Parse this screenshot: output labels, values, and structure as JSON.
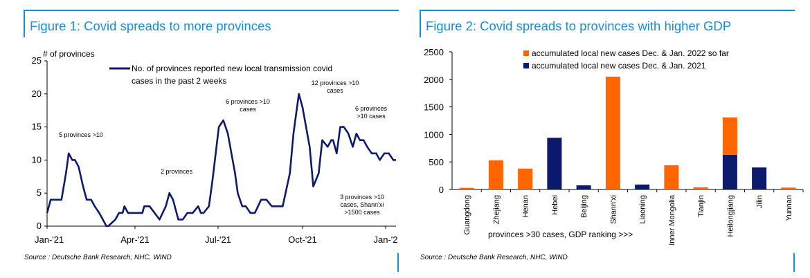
{
  "figure1": {
    "title": "Figure 1: Covid spreads to more provinces",
    "source": "Source : Deutsche Bank Research, NHC, WIND",
    "chart_data": {
      "type": "line",
      "ylabel": "# of provinces",
      "ylim": [
        0,
        25
      ],
      "yticks": [
        0,
        5,
        10,
        15,
        20,
        25
      ],
      "xticks": [
        "Jan-'21",
        "Apr-'21",
        "Jul-'21",
        "Oct-'21",
        "Jan-'2"
      ],
      "legend": "No. of provinces reported new local transmission covid cases in the past 2 weeks",
      "legend_lines": [
        "No. of provinces reported new local transmission covid",
        "cases in the past 2 weeks"
      ],
      "series_color": "#0c1a6e",
      "x_unit": "days since 1 Jan 2021",
      "x": [
        0,
        4,
        8,
        16,
        21,
        24,
        28,
        31,
        35,
        40,
        44,
        49,
        53,
        58,
        62,
        66,
        68,
        76,
        80,
        84,
        86,
        90,
        97,
        106,
        108,
        111,
        114,
        125,
        132,
        136,
        140,
        146,
        151,
        156,
        162,
        168,
        171,
        174,
        180,
        184,
        191,
        196,
        201,
        209,
        212,
        217,
        221,
        226,
        231,
        238,
        244,
        250,
        256,
        262,
        270,
        274,
        280,
        284,
        292,
        296,
        302,
        306,
        312,
        316,
        318,
        322,
        326,
        330,
        335,
        340,
        344,
        348,
        352,
        356,
        361,
        366,
        370,
        375,
        380,
        385,
        388
      ],
      "y": [
        2,
        4,
        4,
        4,
        8,
        11,
        10,
        10,
        9,
        6,
        4,
        4,
        3,
        2,
        1,
        0,
        0,
        1,
        2,
        2,
        3,
        2,
        2,
        2,
        3,
        3,
        3,
        1,
        3,
        5,
        4,
        1,
        1,
        2,
        2,
        3,
        2,
        2,
        3,
        7,
        15,
        16,
        14,
        8,
        5,
        3,
        3,
        2,
        2,
        4,
        4,
        3,
        3,
        3,
        8,
        14,
        20,
        18,
        12,
        6,
        8,
        13,
        12,
        13,
        13,
        11,
        15,
        15,
        14,
        12,
        14,
        13,
        13,
        12,
        11,
        11,
        10,
        11,
        11,
        10,
        10
      ]
    },
    "annotations": {
      "a1": "5 provinces >10",
      "a2": "2 provinces",
      "a3_l1": "6 provinces >10",
      "a3_l2": "cases",
      "a4_l1": "12 provinces >10",
      "a4_l2": "cases",
      "a5_l1": "6 provinces",
      "a5_l2": ">10 cases",
      "a6_l1": "3 provinces >10",
      "a6_l2": "cases, Shann'xi",
      "a6_l3": ">1500 cases"
    }
  },
  "figure2": {
    "title": "Figure 2: Covid spreads to provinces with higher GDP",
    "source": "Source : Deutsche Bank Research, NHC, WIND",
    "chart_data": {
      "type": "bar",
      "xlabel": "provinces >30 cases, GDP ranking >>>",
      "ylim": [
        0,
        2500
      ],
      "yticks": [
        0,
        500,
        1000,
        1500,
        2000,
        2500
      ],
      "categories": [
        "Guangdong",
        "Zhejiang",
        "Henan",
        "Hebei",
        "Beijing",
        "Shann'xi",
        "Liaoning",
        "Inner Mongolia",
        "Tianjin",
        "Heilongjiang",
        "Jilin",
        "Yunnan"
      ],
      "series": [
        {
          "name": "accumulated local new cases Dec. & Jan. 2022 so far",
          "color": "#ff6600",
          "values": [
            30,
            530,
            380,
            0,
            0,
            2050,
            0,
            440,
            40,
            680,
            0,
            35
          ]
        },
        {
          "name": "accumulated local new cases Dec. & Jan. 2021",
          "color": "#0c1a6e",
          "values": [
            0,
            0,
            0,
            940,
            75,
            0,
            90,
            0,
            0,
            630,
            400,
            0
          ]
        }
      ]
    }
  }
}
